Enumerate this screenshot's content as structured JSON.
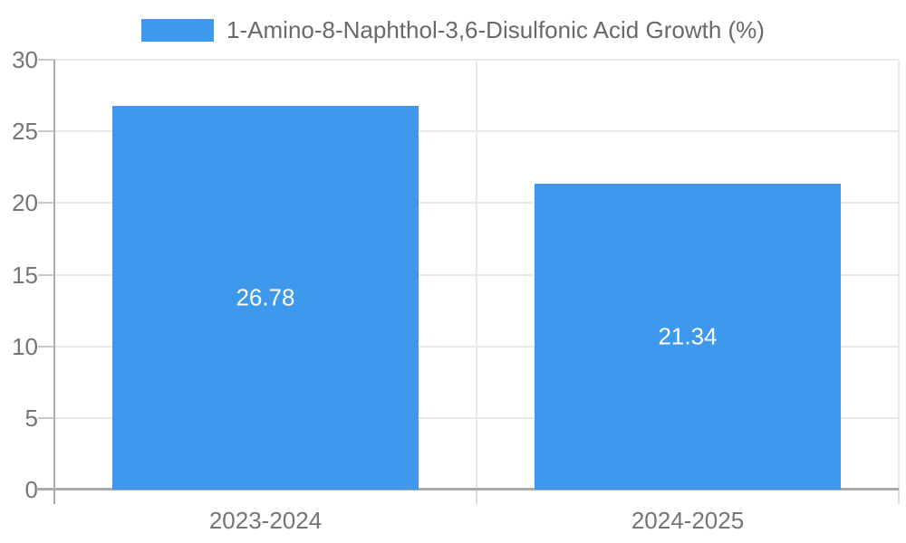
{
  "chart_data": {
    "type": "bar",
    "title": "",
    "legend": "1-Amino-8-Naphthol-3,6-Disulfonic Acid Growth (%)",
    "legend_position": "top-center",
    "categories": [
      "2023-2024",
      "2024-2025"
    ],
    "series": [
      {
        "name": "1-Amino-8-Naphthol-3,6-Disulfonic Acid Growth (%)",
        "values": [
          26.78,
          21.34
        ]
      }
    ],
    "values": [
      26.78,
      21.34
    ],
    "value_labels": [
      "26.78",
      "21.34"
    ],
    "xlabel": "",
    "ylabel": "",
    "ylim": [
      0,
      30
    ],
    "yticks": [
      0,
      5,
      10,
      15,
      20,
      25,
      30
    ],
    "grid": true,
    "colors": {
      "bar": "#3E99ED",
      "bar_label": "#FFFFFF",
      "axis_label": "#757575",
      "legend_text": "#696969",
      "gridline": "#E9E9E9",
      "tick": "#C9C9C9",
      "bottom_tick": "#DCDCDC",
      "axis_line": "#ABABAB"
    }
  }
}
